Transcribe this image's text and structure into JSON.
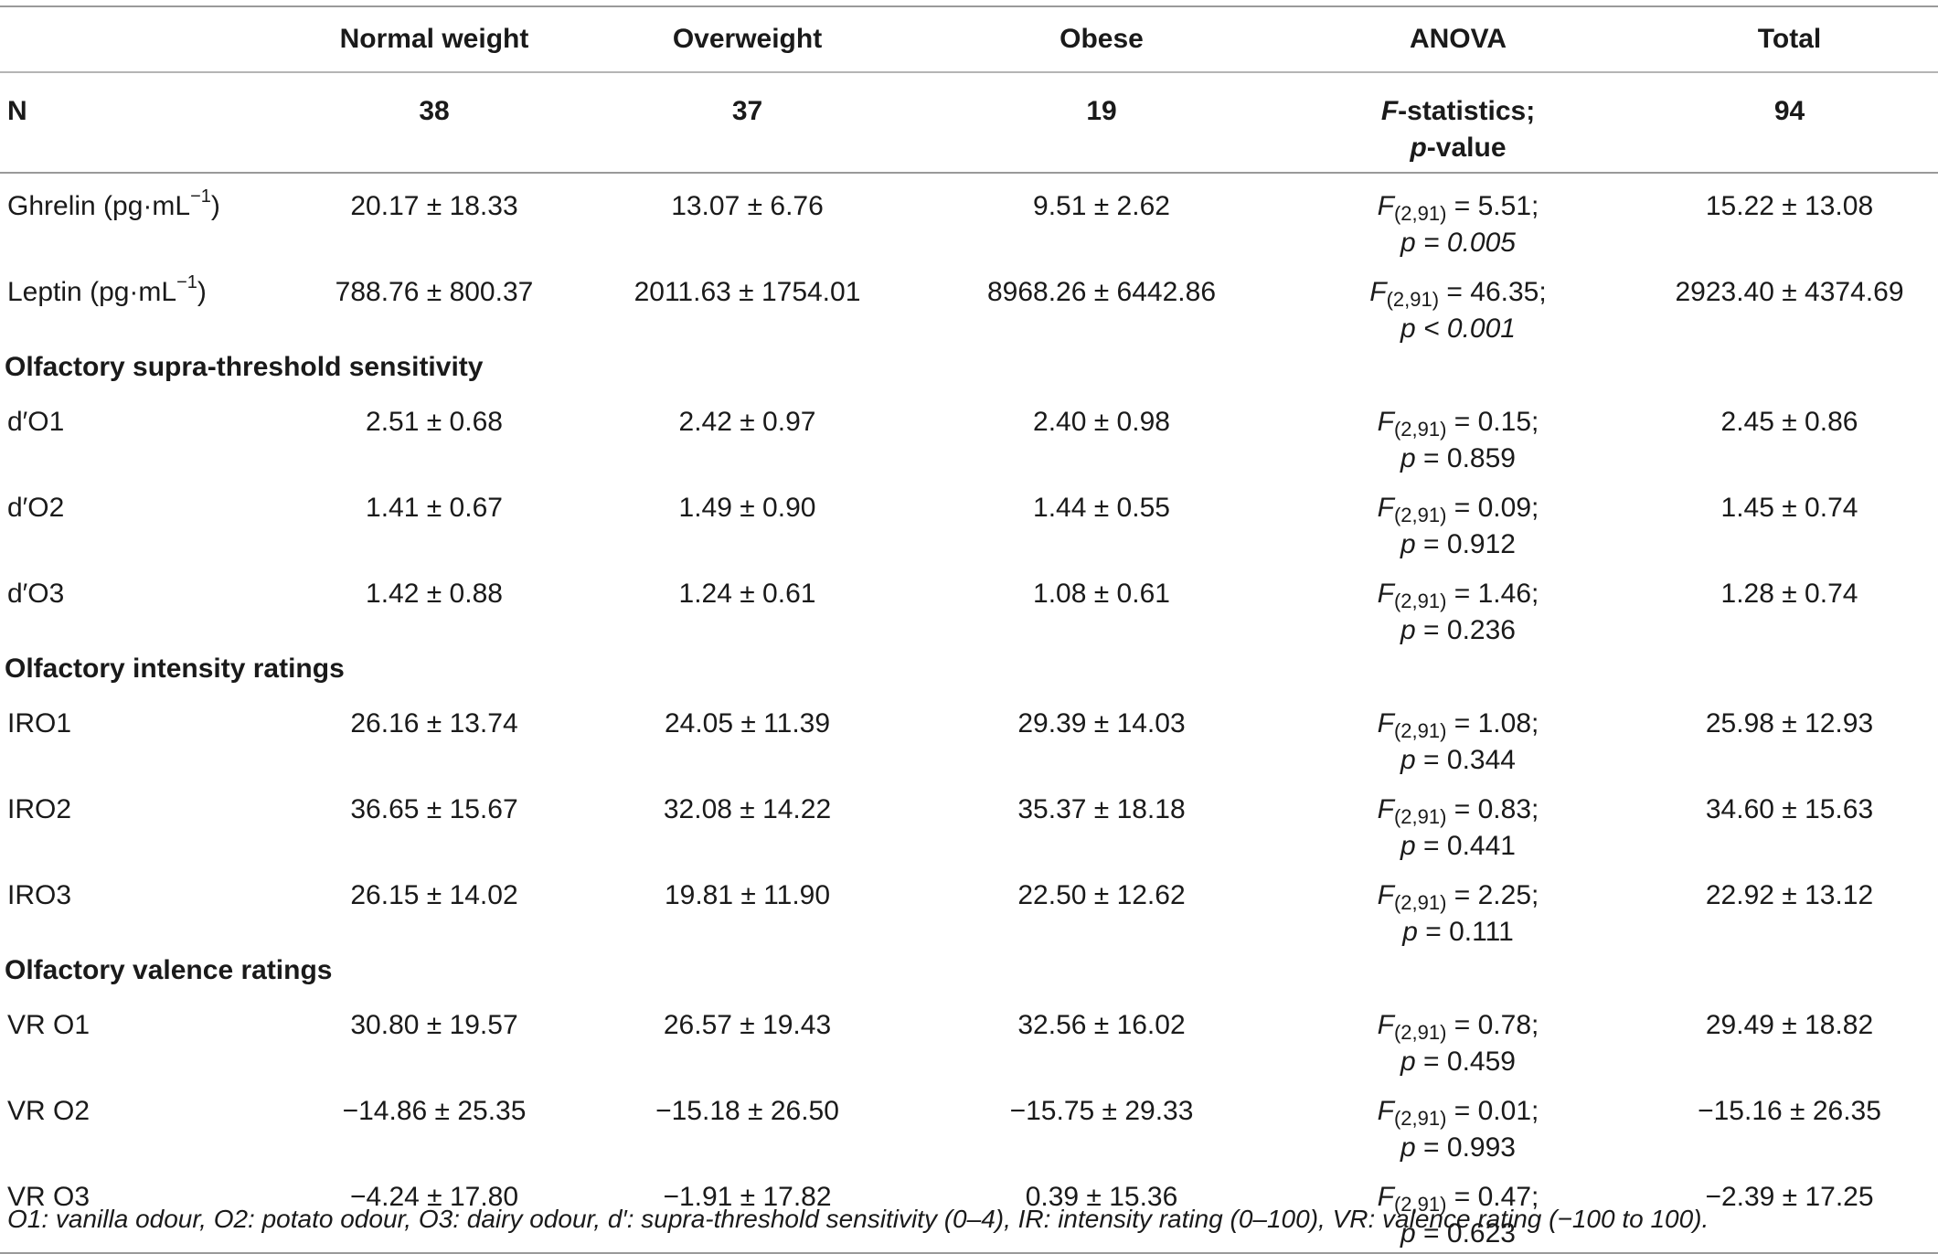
{
  "headers": [
    "",
    "Normal weight",
    "Overweight",
    "Obese",
    "ANOVA",
    "Total"
  ],
  "n_row": {
    "label": "N",
    "values": [
      "38",
      "37",
      "19"
    ],
    "anova_line1_prefix": "F",
    "anova_line1_suffix": "-statistics;",
    "anova_line2_prefix": "p",
    "anova_line2_suffix": "-value",
    "total": "94"
  },
  "hormones": [
    {
      "label": "Ghrelin (pg·mL",
      "unit_sup": "−1",
      "label_close": ")",
      "normal": "20.17 ± 18.33",
      "over": "13.07 ± 6.76",
      "obese": "9.51 ± 2.62",
      "f_sub": "(2,91)",
      "f_val": " = 5.51;",
      "p_text": "p = 0.005",
      "total": "15.22 ± 13.08"
    },
    {
      "label": "Leptin (pg·mL",
      "unit_sup": "−1",
      "label_close": ")",
      "normal": "788.76 ± 800.37",
      "over": "2011.63 ± 1754.01",
      "obese": "8968.26 ± 6442.86",
      "f_sub": "(2,91)",
      "f_val": " = 46.35;",
      "p_text": "p < 0.001",
      "total": "2923.40 ± 4374.69"
    }
  ],
  "sections": [
    {
      "title": "Olfactory supra-threshold sensitivity",
      "rows": [
        {
          "label": "d′O1",
          "normal": "2.51 ± 0.68",
          "over": "2.42 ± 0.97",
          "obese": "2.40 ± 0.98",
          "f_sub": "(2,91)",
          "f_val": " = 0.15;",
          "p_sym": "p",
          "p_val": " = 0.859",
          "total": "2.45 ± 0.86"
        },
        {
          "label": "d′O2",
          "normal": "1.41 ± 0.67",
          "over": "1.49 ± 0.90",
          "obese": "1.44 ± 0.55",
          "f_sub": "(2,91)",
          "f_val": " = 0.09;",
          "p_sym": "p",
          "p_val": " = 0.912",
          "total": "1.45 ± 0.74"
        },
        {
          "label": "d′O3",
          "normal": "1.42 ± 0.88",
          "over": "1.24 ± 0.61",
          "obese": "1.08 ± 0.61",
          "f_sub": "(2,91)",
          "f_val": " = 1.46;",
          "p_sym": "p",
          "p_val": " = 0.236",
          "total": "1.28 ± 0.74"
        }
      ]
    },
    {
      "title": "Olfactory intensity ratings",
      "rows": [
        {
          "label": "IRO1",
          "normal": "26.16 ± 13.74",
          "over": "24.05 ± 11.39",
          "obese": "29.39 ± 14.03",
          "f_sub": "(2,91)",
          "f_val": " = 1.08;",
          "p_sym": "p",
          "p_val": " = 0.344",
          "total": "25.98 ± 12.93"
        },
        {
          "label": "IRO2",
          "normal": "36.65 ± 15.67",
          "over": "32.08 ± 14.22",
          "obese": "35.37 ± 18.18",
          "f_sub": "(2,91)",
          "f_val": " = 0.83;",
          "p_sym": "p",
          "p_val": " = 0.441",
          "total": "34.60 ± 15.63"
        },
        {
          "label": "IRO3",
          "normal": "26.15 ± 14.02",
          "over": "19.81 ± 11.90",
          "obese": "22.50 ± 12.62",
          "f_sub": "(2,91)",
          "f_val": " = 2.25;",
          "p_sym": "p",
          "p_val": " = 0.111",
          "total": "22.92 ± 13.12"
        }
      ]
    },
    {
      "title": "Olfactory valence ratings",
      "rows": [
        {
          "label": "VR O1",
          "normal": "30.80 ± 19.57",
          "over": "26.57 ± 19.43",
          "obese": "32.56 ± 16.02",
          "f_sub": "(2,91)",
          "f_val": " = 0.78;",
          "p_sym": "p",
          "p_val": " = 0.459",
          "total": "29.49 ± 18.82"
        },
        {
          "label": "VR O2",
          "normal": "−14.86 ± 25.35",
          "over": "−15.18 ± 26.50",
          "obese": "−15.75 ± 29.33",
          "f_sub": "(2,91)",
          "f_val": " = 0.01;",
          "p_sym": "p",
          "p_val": " = 0.993",
          "total": "−15.16 ± 26.35"
        },
        {
          "label": "VR O3",
          "normal": "−4.24 ± 17.80",
          "over": "−1.91 ± 17.82",
          "obese": "0.39 ± 15.36",
          "f_sub": "(2,91)",
          "f_val": " = 0.47;",
          "p_sym": "p",
          "p_val": " = 0.623",
          "total": "−2.39 ± 17.25"
        }
      ]
    }
  ],
  "footnote": "O1: vanilla odour, O2: potato odour, O3: dairy odour, d′: supra-threshold sensitivity (0–4), IR: intensity rating (0–100), VR: valence rating (−100 to 100)."
}
